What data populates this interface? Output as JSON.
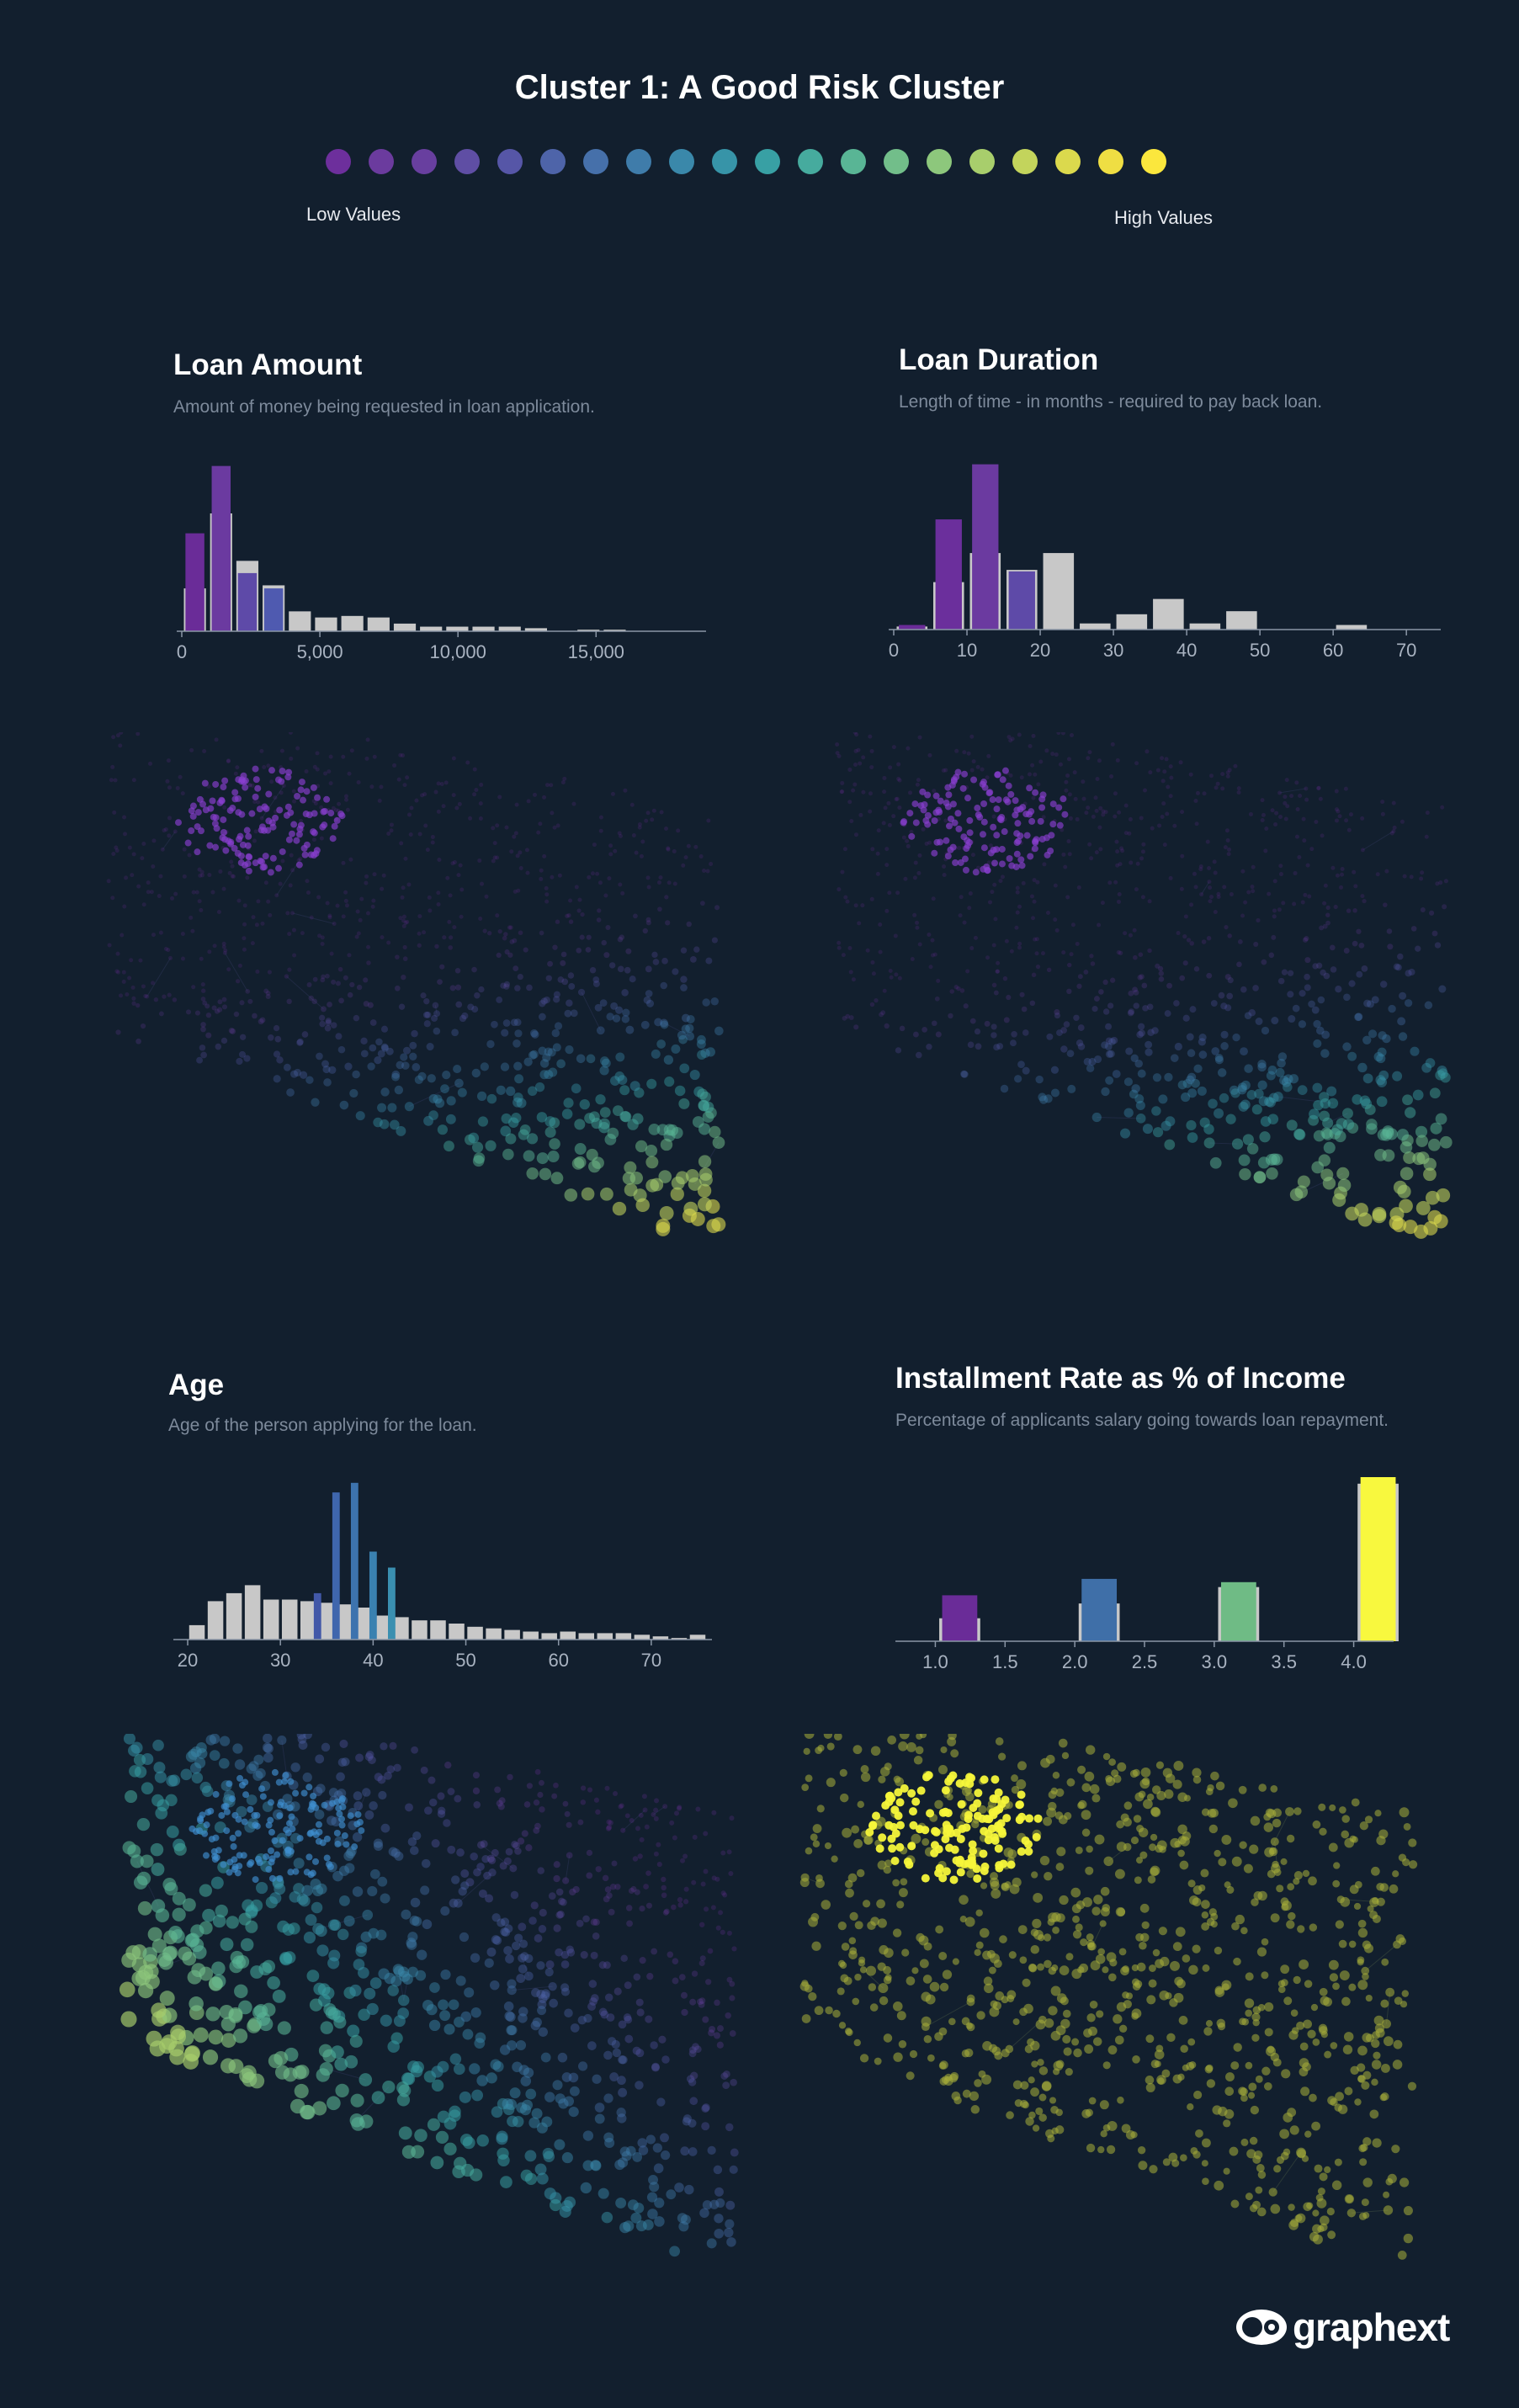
{
  "header": {
    "title": "Cluster 1: A Good Risk Cluster",
    "low_label": "Low Values",
    "high_label": "High Values",
    "palette": [
      "#6d2f9c",
      "#6b3b9e",
      "#683f9f",
      "#5f4ea4",
      "#5656a7",
      "#4e64a9",
      "#4670aa",
      "#3f7caa",
      "#3a88aa",
      "#3794a8",
      "#38a0a4",
      "#46ab9e",
      "#59b595",
      "#72be8a",
      "#8dc77c",
      "#a8ce6c",
      "#c3d45c",
      "#dbd94d",
      "#efde43",
      "#fbe73d"
    ]
  },
  "brand": {
    "name": "graphext"
  },
  "panels": {
    "loan_amount": {
      "title": "Loan Amount",
      "subtitle": "Amount of money being requested in loan application.",
      "scatter_accent": "#8b3fd1"
    },
    "loan_duration": {
      "title": "Loan Duration",
      "subtitle": "Length of time - in months - required to pay back loan.",
      "scatter_accent": "#8b3fd1"
    },
    "age": {
      "title": "Age",
      "subtitle": "Age of the person applying for the loan.",
      "scatter_accent": "#3f8fcf"
    },
    "installment_rate": {
      "title": "Installment Rate as % of Income",
      "subtitle": "Percentage of applicants salary going towards loan repayment.",
      "scatter_accent": "#f5f53a"
    }
  },
  "chart_data": [
    {
      "id": "loan_amount",
      "type": "bar",
      "title": "Loan Amount",
      "xlim": [
        0,
        18800
      ],
      "ylim": [
        0,
        110
      ],
      "xticks": [
        0,
        5000,
        10000,
        15000
      ],
      "xtick_labels": [
        "0",
        "5,000",
        "10,000",
        "15,000"
      ],
      "bin_width": 950,
      "series": [
        {
          "name": "all",
          "color": "#c8c8c8",
          "x": [
            0,
            950,
            1900,
            2850,
            3800,
            4750,
            5700,
            6650,
            7600,
            8550,
            9500,
            10450,
            11400,
            12350,
            14250,
            15200
          ],
          "values": [
            28,
            77,
            46,
            30,
            13,
            9,
            10,
            9,
            5,
            3,
            3,
            3,
            3,
            2,
            1,
            1
          ]
        },
        {
          "name": "cluster",
          "x": [
            0,
            950,
            1900,
            2850
          ],
          "values": [
            64,
            108,
            38,
            28
          ],
          "colors": [
            "#6a2c98",
            "#6b3aa0",
            "#5e4aa8",
            "#4f5ab0"
          ]
        }
      ]
    },
    {
      "id": "loan_duration",
      "type": "bar",
      "title": "Loan Duration",
      "xlim": [
        0,
        74
      ],
      "ylim": [
        0,
        110
      ],
      "xticks": [
        0,
        10,
        20,
        30,
        40,
        50,
        60,
        70
      ],
      "bin_width": 5,
      "series": [
        {
          "name": "all",
          "color": "#c8c8c8",
          "x": [
            0,
            5,
            10,
            15,
            20,
            25,
            30,
            35,
            40,
            45,
            50,
            55,
            60
          ],
          "values": [
            2,
            31,
            50,
            39,
            50,
            4,
            10,
            20,
            4,
            12,
            0,
            0,
            3
          ]
        },
        {
          "name": "cluster",
          "x": [
            0,
            5,
            10,
            15
          ],
          "values": [
            3,
            72,
            108,
            38
          ],
          "colors": [
            "#6a2c98",
            "#6b2f9c",
            "#6b3aa0",
            "#5e4aa8"
          ]
        }
      ]
    },
    {
      "id": "age",
      "type": "bar",
      "title": "Age",
      "xlim": [
        19,
        76
      ],
      "ylim": [
        0,
        100
      ],
      "xticks": [
        20,
        30,
        40,
        50,
        60,
        70
      ],
      "bin_width": 2,
      "series": [
        {
          "name": "all",
          "color": "#c8c8c8",
          "x": [
            20,
            22,
            24,
            26,
            28,
            30,
            32,
            34,
            36,
            38,
            40,
            42,
            44,
            46,
            48,
            50,
            52,
            54,
            56,
            58,
            60,
            62,
            64,
            66,
            68,
            70,
            72,
            74
          ],
          "values": [
            9,
            24,
            29,
            34,
            25,
            25,
            24,
            23,
            22,
            20,
            15,
            14,
            12,
            12,
            10,
            8,
            7,
            6,
            5,
            4,
            5,
            4,
            4,
            4,
            3,
            2,
            1,
            3
          ]
        },
        {
          "name": "cluster",
          "x": [
            33,
            35,
            37,
            39,
            41
          ],
          "values": [
            29,
            92,
            98,
            55,
            45
          ],
          "colors": [
            "#4258a8",
            "#3f66ad",
            "#3d73ae",
            "#3a81b0",
            "#3a8fb0"
          ]
        }
      ]
    },
    {
      "id": "installment_rate",
      "type": "bar",
      "title": "Installment Rate as % of Income",
      "xlim": [
        0.75,
        4.25
      ],
      "ylim": [
        0,
        100
      ],
      "xticks": [
        1.0,
        1.5,
        2.0,
        2.5,
        3.0,
        3.5,
        4.0
      ],
      "xtick_labels": [
        "1.0",
        "1.5",
        "2.0",
        "2.5",
        "3.0",
        "3.5",
        "4.0"
      ],
      "bin_width": 0.35,
      "series": [
        {
          "name": "all",
          "color": "#c8c8c8",
          "x": [
            1,
            2,
            3,
            4
          ],
          "values": [
            14,
            23,
            33,
            96
          ]
        },
        {
          "name": "cluster",
          "x": [
            1,
            2,
            3,
            4
          ],
          "values": [
            28,
            38,
            36,
            100
          ],
          "colors": [
            "#6a2c98",
            "#3f6fa8",
            "#6fbb85",
            "#f8f83e"
          ]
        }
      ]
    }
  ]
}
